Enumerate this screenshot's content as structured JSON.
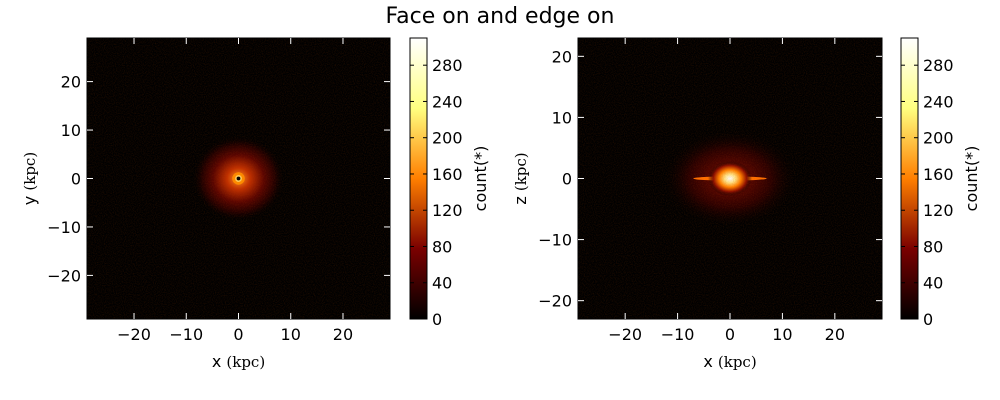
{
  "figure": {
    "title": "Face on and edge on"
  },
  "chart_data": [
    {
      "type": "heatmap",
      "name": "face-on",
      "xlabel": "x",
      "xunit": "(kpc)",
      "ylabel": "y",
      "yunit": "(kpc)",
      "xlim": [
        -29,
        29
      ],
      "ylim": [
        -29,
        29
      ],
      "xticks": [
        -20,
        -10,
        0,
        10,
        20
      ],
      "yticks": [
        -20,
        -10,
        0,
        10,
        20
      ],
      "colorbar": {
        "label": "count(*)",
        "range": [
          0,
          310
        ],
        "ticks": [
          0,
          40,
          80,
          120,
          160,
          200,
          240,
          280
        ],
        "colormap": "afmhot"
      },
      "features": {
        "center": [
          0,
          0
        ],
        "core_radius_kpc": 1.2,
        "halo_radius_kpc": 5.5,
        "hole_at_center": true
      }
    },
    {
      "type": "heatmap",
      "name": "edge-on",
      "xlabel": "x",
      "xunit": "(kpc)",
      "ylabel": "z",
      "yunit": "(kpc)",
      "xlim": [
        -29,
        29
      ],
      "ylim": [
        -23,
        23
      ],
      "xticks": [
        -20,
        -10,
        0,
        10,
        20
      ],
      "yticks": [
        -20,
        -10,
        0,
        10,
        20
      ],
      "colorbar": {
        "label": "count(*)",
        "range": [
          0,
          310
        ],
        "ticks": [
          0,
          40,
          80,
          120,
          160,
          200,
          240,
          280
        ],
        "colormap": "afmhot"
      },
      "features": {
        "center": [
          0,
          0
        ],
        "bulge_halfwidth_kpc": 3.5,
        "bulge_halfheight_kpc": 1.3,
        "disk_halfwidth_kpc": 7,
        "disk_halfheight_kpc": 0.35
      }
    }
  ]
}
